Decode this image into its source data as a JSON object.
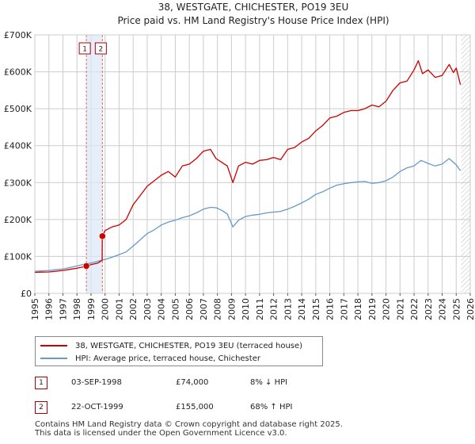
{
  "chart_data": {
    "type": "line",
    "title": "38, WESTGATE, CHICHESTER, PO19 3EU",
    "subtitle": "Price paid vs. HM Land Registry's House Price Index (HPI)",
    "xlabel": "",
    "ylabel": "",
    "xlim": [
      1995,
      2026
    ],
    "ylim": [
      0,
      700000
    ],
    "y_ticks": [
      0,
      100000,
      200000,
      300000,
      400000,
      500000,
      600000,
      700000
    ],
    "y_tick_labels": [
      "£0",
      "£100K",
      "£200K",
      "£300K",
      "£400K",
      "£500K",
      "£600K",
      "£700K"
    ],
    "x_ticks": [
      "1995",
      "1996",
      "1997",
      "1998",
      "1999",
      "2000",
      "2001",
      "2002",
      "2003",
      "2004",
      "2005",
      "2006",
      "2007",
      "2008",
      "2009",
      "2010",
      "2011",
      "2012",
      "2013",
      "2014",
      "2015",
      "2016",
      "2017",
      "2018",
      "2019",
      "2020",
      "2021",
      "2022",
      "2023",
      "2024",
      "2025",
      "2026"
    ],
    "grid": true,
    "series": [
      {
        "name": "38, WESTGATE, CHICHESTER, PO19 3EU (terraced house)",
        "color": "#cc0000",
        "x": [
          1995.0,
          1995.5,
          1996.0,
          1996.5,
          1997.0,
          1997.5,
          1998.0,
          1998.5,
          1998.67,
          1999.0,
          1999.5,
          1999.79,
          1999.8,
          2000.0,
          2000.5,
          2001.0,
          2001.5,
          2002.0,
          2002.5,
          2003.0,
          2003.5,
          2004.0,
          2004.5,
          2005.0,
          2005.5,
          2006.0,
          2006.5,
          2007.0,
          2007.5,
          2007.9,
          2008.3,
          2008.7,
          2009.1,
          2009.5,
          2010.0,
          2010.5,
          2011.0,
          2011.5,
          2012.0,
          2012.5,
          2013.0,
          2013.5,
          2014.0,
          2014.5,
          2015.0,
          2015.5,
          2016.0,
          2016.5,
          2017.0,
          2017.5,
          2018.0,
          2018.5,
          2019.0,
          2019.5,
          2020.0,
          2020.5,
          2021.0,
          2021.5,
          2022.0,
          2022.3,
          2022.6,
          2023.0,
          2023.5,
          2024.0,
          2024.5,
          2024.8,
          2025.0,
          2025.3
        ],
        "values": [
          57000,
          57500,
          58000,
          60000,
          62000,
          65000,
          68000,
          72000,
          74000,
          78000,
          82000,
          90000,
          155000,
          170000,
          180000,
          185000,
          200000,
          240000,
          265000,
          290000,
          305000,
          320000,
          330000,
          315000,
          345000,
          350000,
          365000,
          385000,
          390000,
          365000,
          355000,
          345000,
          300000,
          345000,
          355000,
          350000,
          360000,
          362000,
          368000,
          362000,
          390000,
          395000,
          410000,
          420000,
          440000,
          455000,
          475000,
          480000,
          490000,
          495000,
          495000,
          500000,
          510000,
          505000,
          520000,
          550000,
          570000,
          575000,
          605000,
          630000,
          595000,
          605000,
          585000,
          590000,
          620000,
          598000,
          610000,
          565000
        ]
      },
      {
        "name": "HPI: Average price, terraced house, Chichester",
        "color": "#6699cc",
        "x": [
          1995.0,
          1995.5,
          1996.0,
          1996.5,
          1997.0,
          1997.5,
          1998.0,
          1998.5,
          1999.0,
          1999.5,
          2000.0,
          2000.5,
          2001.0,
          2001.5,
          2002.0,
          2002.5,
          2003.0,
          2003.5,
          2004.0,
          2004.5,
          2005.0,
          2005.5,
          2006.0,
          2006.5,
          2007.0,
          2007.5,
          2007.9,
          2008.3,
          2008.7,
          2009.1,
          2009.5,
          2010.0,
          2010.5,
          2011.0,
          2011.5,
          2012.0,
          2012.5,
          2013.0,
          2013.5,
          2014.0,
          2014.5,
          2015.0,
          2015.5,
          2016.0,
          2016.5,
          2017.0,
          2017.5,
          2018.0,
          2018.5,
          2019.0,
          2019.5,
          2020.0,
          2020.5,
          2021.0,
          2021.5,
          2022.0,
          2022.5,
          2023.0,
          2023.5,
          2024.0,
          2024.5,
          2025.0,
          2025.3
        ],
        "values": [
          60000,
          61000,
          62000,
          64000,
          66000,
          70000,
          74000,
          79000,
          82000,
          87000,
          92000,
          98000,
          105000,
          112000,
          128000,
          145000,
          162000,
          172000,
          185000,
          193000,
          198000,
          205000,
          210000,
          218000,
          228000,
          233000,
          232000,
          225000,
          215000,
          180000,
          198000,
          208000,
          212000,
          214000,
          218000,
          220000,
          222000,
          228000,
          236000,
          245000,
          255000,
          268000,
          275000,
          285000,
          293000,
          297000,
          300000,
          302000,
          303000,
          298000,
          300000,
          305000,
          315000,
          330000,
          340000,
          345000,
          360000,
          352000,
          345000,
          350000,
          365000,
          348000,
          332000
        ]
      }
    ],
    "transactions": [
      {
        "id": "1",
        "x": 1998.67,
        "value": 74000
      },
      {
        "id": "2",
        "x": 1999.81,
        "value": 155000
      }
    ]
  },
  "legend": {
    "property_label": "38, WESTGATE, CHICHESTER, PO19 3EU (terraced house)",
    "hpi_label": "HPI: Average price, terraced house, Chichester"
  },
  "table": [
    {
      "id": "1",
      "date": "03-SEP-1998",
      "price": "£74,000",
      "hpi": "8% ↓ HPI"
    },
    {
      "id": "2",
      "date": "22-OCT-1999",
      "price": "£155,000",
      "hpi": "68% ↑ HPI"
    }
  ],
  "footer": {
    "line1": "Contains HM Land Registry data © Crown copyright and database right 2025.",
    "line2": "This data is licensed under the Open Government Licence v3.0."
  }
}
